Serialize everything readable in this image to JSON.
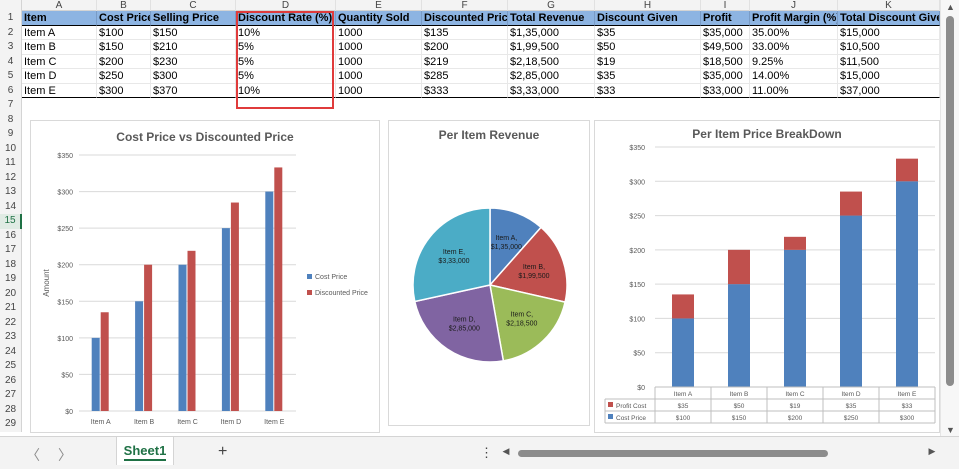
{
  "columns": [
    "A",
    "B",
    "C",
    "D",
    "E",
    "F",
    "G",
    "H",
    "I",
    "J",
    "K"
  ],
  "rows": [
    "1",
    "2",
    "3",
    "4",
    "5",
    "6",
    "7",
    "8",
    "9",
    "10",
    "11",
    "12",
    "13",
    "14",
    "15",
    "16",
    "17",
    "18",
    "19",
    "20",
    "21",
    "22",
    "23",
    "24",
    "25",
    "26",
    "27",
    "28",
    "29"
  ],
  "active_row": "15",
  "table": {
    "headers": [
      "Item",
      "Cost Price",
      "Selling Price",
      "Discount Rate (%)",
      "Quantity Sold",
      "Discounted Price",
      "Total Revenue",
      "Discount Given",
      "Profit",
      "Profit Margin (%)",
      "Total Discount Given"
    ],
    "rows": [
      [
        "Item A",
        "$100",
        "$150",
        "10%",
        "1000",
        "$135",
        "$1,35,000",
        "$35",
        "$35,000",
        "35.00%",
        "$15,000"
      ],
      [
        "Item B",
        "$150",
        "$210",
        "5%",
        "1000",
        "$200",
        "$1,99,500",
        "$50",
        "$49,500",
        "33.00%",
        "$10,500"
      ],
      [
        "Item C",
        "$200",
        "$230",
        "5%",
        "1000",
        "$219",
        "$2,18,500",
        "$19",
        "$18,500",
        "9.25%",
        "$11,500"
      ],
      [
        "Item D",
        "$250",
        "$300",
        "5%",
        "1000",
        "$285",
        "$2,85,000",
        "$35",
        "$35,000",
        "14.00%",
        "$15,000"
      ],
      [
        "Item E",
        "$300",
        "$370",
        "10%",
        "1000",
        "$333",
        "$3,33,000",
        "$33",
        "$33,000",
        "11.00%",
        "$37,000"
      ]
    ]
  },
  "charts": {
    "cost_vs_discount": {
      "title": "Cost Price vs Discounted Price"
    },
    "revenue_pie": {
      "title": "Per Item Revenue"
    },
    "breakdown": {
      "title": "Per Item Price BreakDown"
    }
  },
  "chart_data": [
    {
      "type": "bar",
      "title": "Cost Price vs Discounted Price",
      "categories": [
        "Item A",
        "Item B",
        "Item C",
        "Item D",
        "Item E"
      ],
      "series": [
        {
          "name": "Cost Price",
          "values": [
            100,
            150,
            200,
            250,
            300
          ],
          "color": "#4f81bd"
        },
        {
          "name": "Discounted Price",
          "values": [
            135,
            200,
            219,
            285,
            333
          ],
          "color": "#c0504d"
        }
      ],
      "ylabel": "Amount",
      "ylim": [
        0,
        350
      ],
      "yticks": [
        "$0",
        "$50",
        "$100",
        "$150",
        "$200",
        "$250",
        "$300",
        "$350"
      ],
      "legend": "right"
    },
    {
      "type": "pie",
      "title": "Per Item Revenue",
      "categories": [
        "Item A",
        "Item B",
        "Item C",
        "Item D",
        "Item E"
      ],
      "values": [
        135000,
        199500,
        218500,
        285000,
        333000
      ],
      "labels": [
        "$1,35,000",
        "$1,99,500",
        "$2,18,500",
        "$2,85,000",
        "$3,33,000"
      ],
      "colors": [
        "#4f81bd",
        "#c0504d",
        "#9bbb59",
        "#8064a2",
        "#4bacc6"
      ]
    },
    {
      "type": "bar",
      "stacked": true,
      "title": "Per Item Price BreakDown",
      "categories": [
        "Item A",
        "Item B",
        "Item C",
        "Item D",
        "Item E"
      ],
      "series": [
        {
          "name": "Cost Price",
          "values": [
            100,
            150,
            200,
            250,
            300
          ],
          "color": "#4f81bd",
          "labels": [
            "$100",
            "$150",
            "$200",
            "$250",
            "$300"
          ]
        },
        {
          "name": "Profit Cost",
          "values": [
            35,
            50,
            19,
            35,
            33
          ],
          "color": "#c0504d",
          "labels": [
            "$35",
            "$50",
            "$19",
            "$35",
            "$33"
          ]
        }
      ],
      "ylim": [
        0,
        350
      ],
      "yticks": [
        "$0",
        "$50",
        "$100",
        "$150",
        "$200",
        "$250",
        "$300",
        "$350"
      ],
      "data_table": true
    }
  ],
  "sheet_tab": "Sheet1",
  "add_sheet": "+",
  "more": "⋮",
  "nav": {
    "prev": "〈",
    "next": "〉"
  }
}
